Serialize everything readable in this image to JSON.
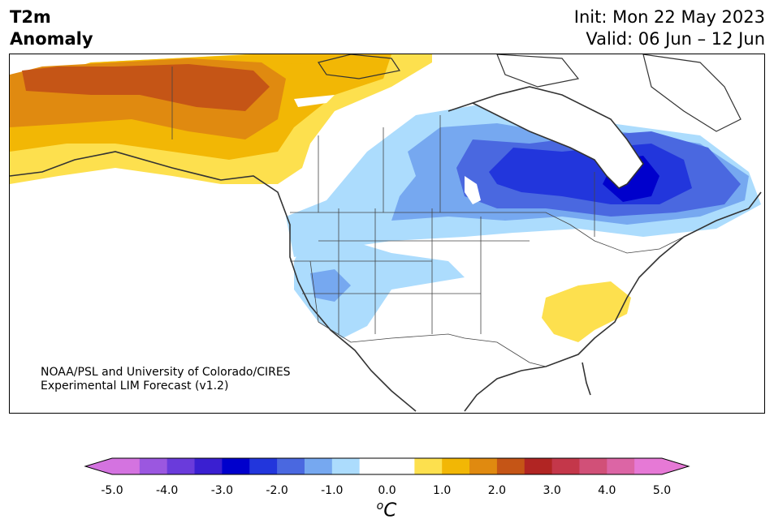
{
  "header": {
    "title_line1": "T2m",
    "title_line2": "Anomaly",
    "init": "Init: Mon 22 May 2023",
    "valid": "Valid: 06 Jun – 12 Jun"
  },
  "credit": {
    "line1": "NOAA/PSL and University of Colorado/CIRES",
    "line2": "Experimental LIM Forecast (v1.2)"
  },
  "colorbar": {
    "ticks": [
      "-5.0",
      "-4.0",
      "-3.0",
      "-2.0",
      "-1.0",
      "0.0",
      "1.0",
      "2.0",
      "3.0",
      "4.0",
      "5.0"
    ],
    "unit_base": "C",
    "unit_sup": "o",
    "colors": [
      "#d473e0",
      "#9b57e0",
      "#6a3bdb",
      "#3a1fd1",
      "#0000cc",
      "#2236dc",
      "#4a68e0",
      "#76a8f0",
      "#acdcfd",
      "#ffffff",
      "#ffffff",
      "#fde04e",
      "#f2b705",
      "#e08a10",
      "#c55516",
      "#b12523",
      "#c4374a",
      "#d15078",
      "#dc65a5",
      "#e679d6"
    ],
    "min_arrow_color": "#d473e0",
    "max_arrow_color": "#e679d6"
  },
  "anomaly_regions": [
    {
      "label": "alaska-warm",
      "level": "2.5"
    },
    {
      "label": "hudson-bay-cold",
      "level": "-3.5"
    },
    {
      "label": "southeast-warm",
      "level": "0.5"
    },
    {
      "label": "southwest-cool",
      "level": "-1.5"
    }
  ]
}
